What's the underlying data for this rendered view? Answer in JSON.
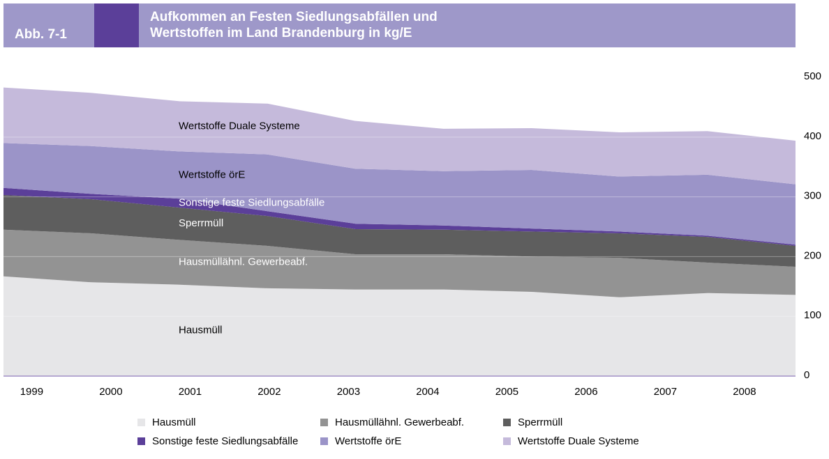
{
  "figure_label": "Abb. 7-1",
  "chart_data": {
    "type": "stacked_area",
    "title": "Aufkommen an Festen Siedlungsabfällen und Wertstoffen im Land Brandenburg in kg/E",
    "categories": [
      "1999",
      "2000",
      "2001",
      "2002",
      "2003",
      "2004",
      "2005",
      "2006",
      "2007",
      "2008"
    ],
    "series": [
      {
        "name": "Hausmüll",
        "color": "#e6e6e8",
        "values": [
          167,
          157,
          153,
          147,
          145,
          145,
          141,
          132,
          139,
          136
        ]
      },
      {
        "name": "Hausmüllähnl. Gewerbeabf.",
        "color": "#939393",
        "values": [
          78,
          82,
          75,
          71,
          59,
          59,
          59,
          66,
          51,
          47
        ]
      },
      {
        "name": "Sperrmüll",
        "color": "#5e5e5e",
        "values": [
          58,
          57,
          54,
          50,
          42,
          41,
          42,
          41,
          43,
          35
        ]
      },
      {
        "name": "Sonstige feste Siedlungsabfälle",
        "color": "#5b3f99",
        "values": [
          12,
          9,
          15,
          8,
          9,
          7,
          5,
          3,
          2,
          2
        ]
      },
      {
        "name": "Wertstoffe örE",
        "color": "#9b94c8",
        "values": [
          75,
          80,
          79,
          95,
          92,
          91,
          98,
          92,
          102,
          101
        ]
      },
      {
        "name": "Wertstoffe Duale Systeme",
        "color": "#c5badb",
        "values": [
          93,
          89,
          84,
          85,
          80,
          71,
          70,
          74,
          73,
          73
        ]
      }
    ],
    "ylim": [
      0,
      542
    ],
    "yticks": [
      0,
      100,
      200,
      300,
      400,
      500
    ],
    "grid": true
  }
}
